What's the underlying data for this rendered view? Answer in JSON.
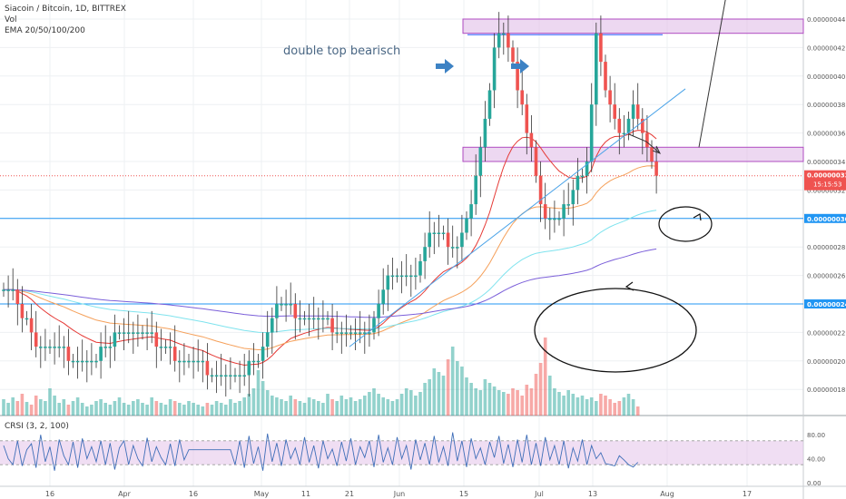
{
  "header": {
    "symbol": "Siacoin / Bitcoin, 1D, BITTREX",
    "volume_label": "Vol",
    "ema_label": "EMA 20/50/100/200"
  },
  "indicator": {
    "label": "CRSI (3, 2, 100)",
    "ticks": [
      "80.00",
      "40.00",
      "0.00"
    ]
  },
  "annotation_text": "double top bearisch",
  "price_axis": {
    "ticks": [
      "0.00000044",
      "0.00000042",
      "0.00000040",
      "0.00000038",
      "0.00000036",
      "0.00000034",
      "0.00000032",
      "0.00000028",
      "0.00000026",
      "0.00000022",
      "0.00000020",
      "0.00000018"
    ],
    "last_price": "0.00000033",
    "countdown": "15:15:53",
    "hline_labels": [
      "0.00000030",
      "0.00000024"
    ]
  },
  "time_axis": {
    "ticks": [
      "16",
      "Apr",
      "16",
      "May",
      "11",
      "21",
      "Jun",
      "15",
      "Jul",
      "13",
      "Aug",
      "17"
    ]
  },
  "colors": {
    "up": "#26a69a",
    "down": "#ef5350",
    "ema20": "#e53935",
    "ema50": "#f5a05a",
    "ema100": "#7fe3ee",
    "ema200": "#7b5fd9",
    "hline": "#2196f3",
    "zone": "#e1bee7"
  },
  "chart_data": {
    "type": "candlestick",
    "title": "Siacoin / Bitcoin, 1D, BITTREX",
    "ylim": [
      1.7e-07,
      4.5e-07
    ],
    "last_close": 3.3e-07,
    "horizontal_levels": [
      3e-07,
      2.4e-07
    ],
    "resistance_zones": [
      [
        4.3e-07,
        4.4e-07
      ],
      [
        3.4e-07,
        3.5e-07
      ]
    ],
    "trend": [
      2.5e-07,
      2.5e-07,
      2.5e-07,
      2.4e-07,
      2.3e-07,
      2.3e-07,
      2.2e-07,
      2.1e-07,
      2.1e-07,
      2.1e-07,
      2.1e-07,
      2.1e-07,
      2.1e-07,
      2.1e-07,
      2e-07,
      2e-07,
      2e-07,
      2e-07,
      2e-07,
      2e-07,
      2e-07,
      2.1e-07,
      2.1e-07,
      2.1e-07,
      2.2e-07,
      2.2e-07,
      2.2e-07,
      2.2e-07,
      2.2e-07,
      2.2e-07,
      2.2e-07,
      2.2e-07,
      2.2e-07,
      2.1e-07,
      2.1e-07,
      2.1e-07,
      2.1e-07,
      2e-07,
      2e-07,
      2e-07,
      2e-07,
      2e-07,
      2e-07,
      2e-07,
      1.9e-07,
      1.9e-07,
      1.9e-07,
      1.9e-07,
      1.9e-07,
      1.9e-07,
      1.9e-07,
      1.9e-07,
      1.9e-07,
      2e-07,
      2e-07,
      2e-07,
      2.1e-07,
      2.2e-07,
      2.3e-07,
      2.4e-07,
      2.4e-07,
      2.4e-07,
      2.4e-07,
      2.3e-07,
      2.3e-07,
      2.3e-07,
      2.3e-07,
      2.3e-07,
      2.3e-07,
      2.3e-07,
      2.3e-07,
      2.2e-07,
      2.2e-07,
      2.2e-07,
      2.2e-07,
      2.2e-07,
      2.2e-07,
      2.2e-07,
      2.2e-07,
      2.2e-07,
      2.3e-07,
      2.4e-07,
      2.5e-07,
      2.6e-07,
      2.6e-07,
      2.6e-07,
      2.6e-07,
      2.6e-07,
      2.6e-07,
      2.6e-07,
      2.7e-07,
      2.8e-07,
      2.9e-07,
      2.9e-07,
      2.9e-07,
      2.9e-07,
      2.8e-07,
      2.8e-07,
      2.8e-07,
      2.9e-07,
      3e-07,
      3.1e-07,
      3.3e-07,
      3.5e-07,
      3.7e-07,
      3.9e-07,
      4.2e-07,
      4.3e-07,
      4.3e-07,
      4.2e-07,
      4.1e-07,
      3.9e-07,
      3.8e-07,
      3.6e-07,
      3.5e-07,
      3.3e-07,
      3.1e-07,
      3e-07,
      3e-07,
      3e-07,
      3e-07,
      3.1e-07,
      3.1e-07,
      3.2e-07,
      3.3e-07,
      3.3e-07,
      3.4e-07,
      3.8e-07,
      4.3e-07,
      4.1e-07,
      3.9e-07,
      3.8e-07,
      3.7e-07,
      3.6e-07,
      3.6e-07,
      3.7e-07,
      3.8e-07,
      3.7e-07,
      3.6e-07,
      3.5e-07,
      3.4e-07,
      3.3e-07
    ],
    "volume": [
      18,
      14,
      20,
      16,
      24,
      15,
      12,
      22,
      18,
      16,
      30,
      22,
      14,
      18,
      12,
      16,
      20,
      14,
      10,
      12,
      16,
      18,
      14,
      12,
      16,
      20,
      14,
      12,
      16,
      18,
      14,
      12,
      20,
      16,
      14,
      12,
      18,
      16,
      14,
      12,
      16,
      14,
      12,
      10,
      14,
      12,
      16,
      14,
      12,
      18,
      14,
      16,
      20,
      24,
      30,
      50,
      38,
      28,
      22,
      20,
      18,
      16,
      22,
      18,
      16,
      14,
      20,
      18,
      16,
      14,
      24,
      18,
      16,
      22,
      18,
      20,
      16,
      18,
      22,
      26,
      30,
      24,
      20,
      18,
      16,
      18,
      24,
      30,
      28,
      22,
      26,
      36,
      40,
      52,
      48,
      44,
      62,
      76,
      60,
      54,
      42,
      36,
      30,
      28,
      40,
      36,
      32,
      28,
      26,
      24,
      30,
      28,
      22,
      34,
      30,
      46,
      58,
      86,
      44,
      30,
      26,
      22,
      28,
      24,
      20,
      22,
      18,
      20,
      16,
      24,
      22,
      18,
      14,
      16,
      20,
      24,
      18,
      10
    ],
    "crsi": [
      62,
      40,
      30,
      70,
      28,
      55,
      65,
      25,
      80,
      35,
      60,
      20,
      72,
      45,
      30,
      68,
      25,
      74,
      40,
      60,
      35,
      70,
      30,
      66,
      22,
      58,
      70,
      30,
      62,
      40,
      28,
      75,
      35,
      60,
      42,
      30,
      65,
      28,
      72,
      38,
      55,
      55,
      55,
      55,
      55,
      55,
      55,
      55,
      55,
      55,
      30,
      70,
      25,
      78,
      32,
      60,
      20,
      82,
      35,
      66,
      28,
      72,
      40,
      58,
      30,
      76,
      34,
      62,
      24,
      70,
      40,
      56,
      28,
      68,
      36,
      74,
      30,
      60,
      42,
      70,
      26,
      80,
      34,
      58,
      30,
      76,
      40,
      62,
      22,
      72,
      38,
      66,
      30,
      78,
      34,
      60,
      28,
      84,
      36,
      70,
      26,
      74,
      40,
      58,
      30,
      68,
      42,
      78,
      32,
      64,
      26,
      72,
      34,
      80,
      30,
      66,
      28,
      76,
      38,
      62,
      30,
      70,
      24,
      58,
      36,
      72,
      30,
      62,
      40,
      50,
      32,
      30,
      28,
      45,
      38,
      30,
      26,
      34
    ]
  }
}
